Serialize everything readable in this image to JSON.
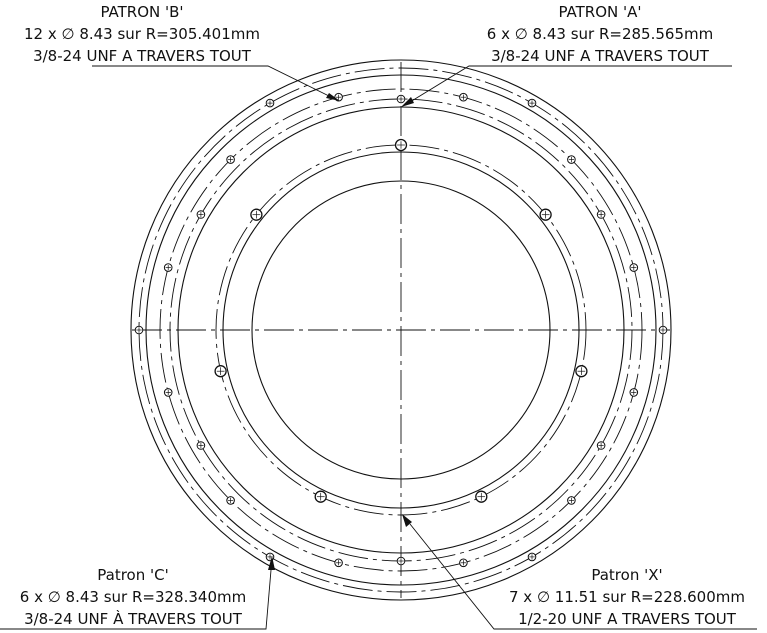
{
  "callouts": {
    "b": {
      "title": "PATRON 'B'",
      "spec": "12 x ∅ 8.43 sur R=305.401mm",
      "thread": "3/8-24 UNF  A TRAVERS TOUT"
    },
    "a": {
      "title": "PATRON 'A'",
      "spec": "6 x ∅ 8.43 sur R=285.565mm",
      "thread": "3/8-24 UNF  A TRAVERS TOUT"
    },
    "c": {
      "title": "Patron 'C'",
      "spec": "6 x ∅ 8.43 sur R=328.340mm",
      "thread": "3/8-24 UNF  À TRAVERS TOUT"
    },
    "x": {
      "title": "Patron 'X'",
      "spec": "7 x ∅ 11.51 sur R=228.600mm",
      "thread": "1/2-20 UNF  A TRAVERS TOUT"
    }
  },
  "patterns": [
    {
      "id": "X",
      "count": 7,
      "diameter": 11.51,
      "radius": 228.6
    },
    {
      "id": "A",
      "count": 6,
      "diameter": 8.43,
      "radius": 285.565
    },
    {
      "id": "B",
      "count": 12,
      "diameter": 8.43,
      "radius": 305.401
    },
    {
      "id": "C",
      "count": 6,
      "diameter": 8.43,
      "radius": 328.34
    }
  ]
}
